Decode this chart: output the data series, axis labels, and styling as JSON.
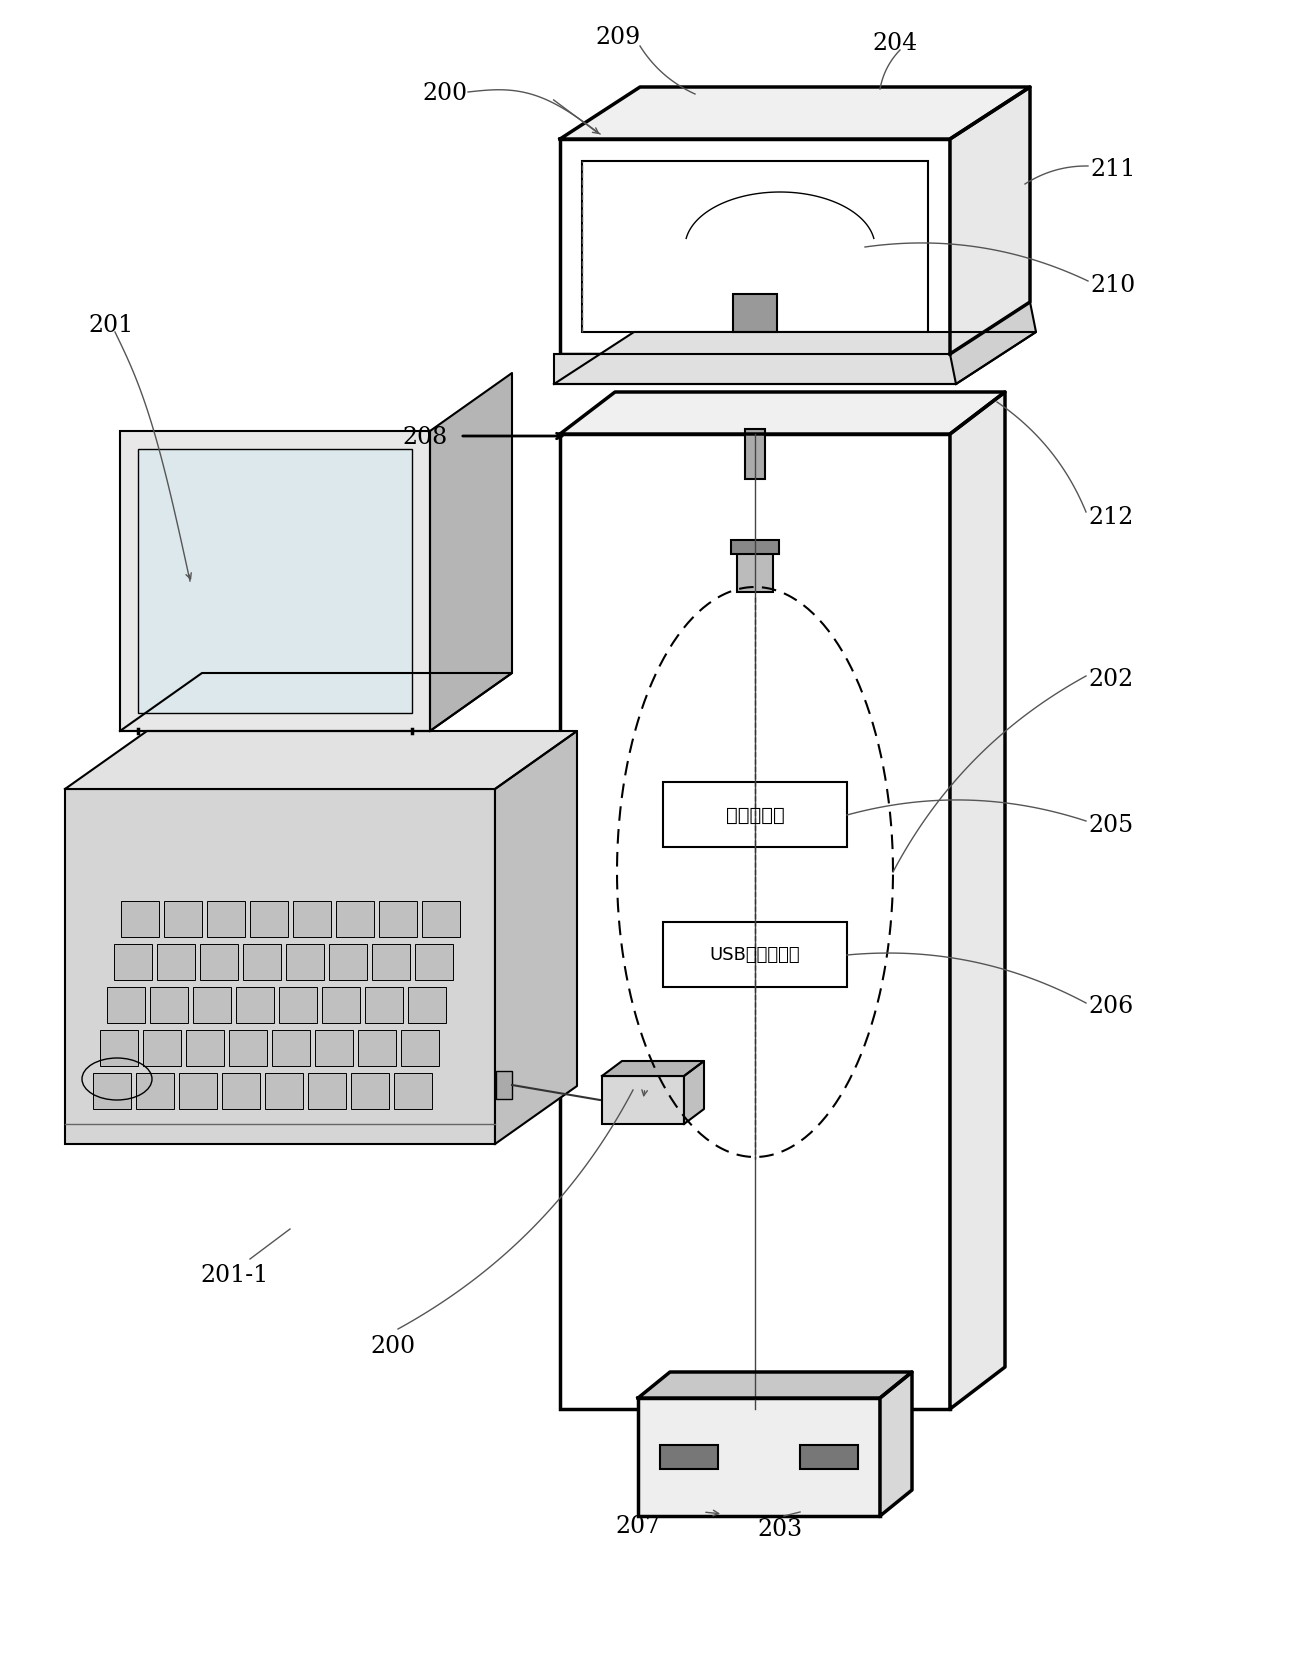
{
  "bg_color": "#ffffff",
  "line_color": "#000000",
  "label_color": "#000000",
  "korean_205": "무선통신부",
  "korean_206": "USB연결제어부",
  "labels": [
    "200",
    "209",
    "204",
    "211",
    "210",
    "208",
    "201",
    "201-1",
    "200",
    "212",
    "202",
    "205",
    "206",
    "207",
    "203"
  ]
}
